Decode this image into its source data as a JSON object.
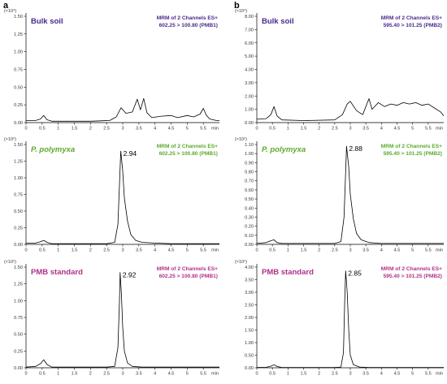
{
  "figure": {
    "panel_a": "a",
    "panel_b": "b"
  },
  "chart_data": [
    {
      "type": "line",
      "column": "a",
      "row": 0,
      "title": "Bulk soil",
      "title_color": "#4b2a8c",
      "info_line1": "MRM of 2 Channels ES+",
      "info_line2": "602.25 > 100.80 (PMB1)",
      "info_color": "#4b2a8c",
      "multiplier": "(×10⁴)",
      "ylim": [
        0,
        1.5
      ],
      "yticks": [
        "0.00",
        "0.25",
        "0.50",
        "0.75",
        "1.00",
        "1.25",
        "1.50"
      ],
      "xlim": [
        0,
        6
      ],
      "xticks": [
        "0",
        "0.5",
        "1",
        "1.5",
        "2",
        "2.5",
        "3",
        "3.5",
        "4",
        "4.5",
        "5",
        "5.5"
      ],
      "xunit": "min",
      "peak_label": "",
      "x": [
        0.0,
        0.3,
        0.45,
        0.55,
        0.65,
        0.8,
        1.2,
        2.0,
        2.6,
        2.8,
        2.95,
        3.1,
        3.3,
        3.45,
        3.55,
        3.65,
        3.75,
        3.9,
        4.2,
        4.5,
        4.7,
        5.0,
        5.2,
        5.4,
        5.5,
        5.6,
        5.7,
        5.9,
        6.0
      ],
      "y": [
        0.03,
        0.03,
        0.05,
        0.1,
        0.04,
        0.02,
        0.02,
        0.02,
        0.03,
        0.08,
        0.21,
        0.13,
        0.15,
        0.33,
        0.18,
        0.34,
        0.14,
        0.07,
        0.09,
        0.1,
        0.07,
        0.1,
        0.08,
        0.12,
        0.2,
        0.1,
        0.05,
        0.03,
        0.03
      ]
    },
    {
      "type": "line",
      "column": "b",
      "row": 0,
      "title": "Bulk soil",
      "title_color": "#4b2a8c",
      "info_line1": "MRM of 2 Channels ES+",
      "info_line2": "595.40 > 101.25 (PMB2)",
      "info_color": "#4b2a8c",
      "multiplier": "(×10⁴)",
      "ylim": [
        0,
        8.0
      ],
      "yticks": [
        "0.00",
        "1.00",
        "2.00",
        "3.00",
        "4.00",
        "5.00",
        "6.00",
        "7.00",
        "8.00"
      ],
      "xlim": [
        0,
        6
      ],
      "xticks": [
        "0",
        "0.5",
        "1",
        "1.5",
        "2",
        "2.5",
        "3",
        "3.5",
        "4",
        "4.5",
        "5",
        "5.5"
      ],
      "xunit": "min",
      "peak_label": "",
      "x": [
        0.0,
        0.3,
        0.45,
        0.55,
        0.65,
        0.8,
        1.5,
        2.5,
        2.75,
        2.9,
        3.0,
        3.2,
        3.4,
        3.6,
        3.7,
        3.9,
        4.1,
        4.3,
        4.5,
        4.7,
        4.9,
        5.1,
        5.3,
        5.5,
        5.7,
        5.9,
        6.0
      ],
      "y": [
        0.25,
        0.3,
        0.6,
        1.2,
        0.5,
        0.2,
        0.15,
        0.2,
        0.6,
        1.4,
        1.6,
        0.9,
        0.6,
        1.8,
        1.0,
        1.5,
        1.2,
        1.4,
        1.3,
        1.5,
        1.4,
        1.5,
        1.3,
        1.4,
        1.1,
        0.8,
        0.5
      ]
    },
    {
      "type": "line",
      "column": "a",
      "row": 1,
      "title": "P. polymyxa",
      "title_color": "#5aaa2a",
      "info_line1": "MRM of 2 Channels ES+",
      "info_line2": "602.25 > 100.80 (PMB1)",
      "info_color": "#5aaa2a",
      "multiplier": "(×10⁵)",
      "ylim": [
        0,
        1.5
      ],
      "yticks": [
        "0.00",
        "0.25",
        "0.50",
        "0.75",
        "1.00",
        "1.25",
        "1.50"
      ],
      "xlim": [
        0,
        6
      ],
      "xticks": [
        "0",
        "0.5",
        "1",
        "1.5",
        "2",
        "2.5",
        "3",
        "3.5",
        "4",
        "4.5",
        "5",
        "5.5"
      ],
      "xunit": "min",
      "peak_label": "2.94",
      "x": [
        0.0,
        0.3,
        0.45,
        0.55,
        0.65,
        0.8,
        1.5,
        2.5,
        2.75,
        2.85,
        2.9,
        2.94,
        3.0,
        3.05,
        3.15,
        3.25,
        3.4,
        3.6,
        4.0,
        4.5,
        5.0,
        5.5,
        6.0
      ],
      "y": [
        0.02,
        0.02,
        0.04,
        0.06,
        0.03,
        0.01,
        0.01,
        0.01,
        0.03,
        0.3,
        0.9,
        1.4,
        1.1,
        0.7,
        0.35,
        0.15,
        0.06,
        0.03,
        0.02,
        0.01,
        0.01,
        0.01,
        0.01
      ]
    },
    {
      "type": "line",
      "column": "b",
      "row": 1,
      "title": "P. polymyxa",
      "title_color": "#5aaa2a",
      "info_line1": "MRM of 2 Channels ES+",
      "info_line2": "595.40 > 101.25 (PMB2)",
      "info_color": "#5aaa2a",
      "multiplier": "(×10⁵)",
      "ylim": [
        0,
        1.1
      ],
      "yticks": [
        "0.00",
        "0.10",
        "0.20",
        "0.30",
        "0.40",
        "0.50",
        "0.60",
        "0.70",
        "0.80",
        "0.90",
        "1.00",
        "1.10"
      ],
      "xlim": [
        0,
        6
      ],
      "xticks": [
        "0",
        "0.5",
        "1",
        "1.5",
        "2",
        "2.5",
        "3",
        "3.5",
        "4",
        "4.5",
        "5",
        "5.5"
      ],
      "xunit": "min",
      "peak_label": "2.88",
      "x": [
        0.0,
        0.3,
        0.45,
        0.55,
        0.65,
        0.8,
        1.5,
        2.5,
        2.7,
        2.8,
        2.85,
        2.88,
        2.95,
        3.0,
        3.1,
        3.2,
        3.35,
        3.6,
        4.0,
        4.5,
        5.0,
        5.5,
        6.0
      ],
      "y": [
        0.01,
        0.02,
        0.04,
        0.05,
        0.02,
        0.01,
        0.01,
        0.01,
        0.03,
        0.3,
        0.8,
        1.08,
        0.85,
        0.55,
        0.28,
        0.12,
        0.05,
        0.02,
        0.01,
        0.01,
        0.01,
        0.01,
        0.01
      ]
    },
    {
      "type": "line",
      "column": "a",
      "row": 2,
      "title": "PMB standard",
      "title_color": "#b0308a",
      "info_line1": "MRM of 2 Channels ES+",
      "info_line2": "602.25 > 100.80 (PMB1)",
      "info_color": "#b0308a",
      "multiplier": "(×10⁵)",
      "ylim": [
        0,
        1.5
      ],
      "yticks": [
        "0.00",
        "0.25",
        "0.50",
        "0.75",
        "1.00",
        "1.25",
        "1.50"
      ],
      "xlim": [
        0,
        6
      ],
      "xticks": [
        "0",
        "0.5",
        "1",
        "1.5",
        "2",
        "2.5",
        "3",
        "3.5",
        "4",
        "4.5",
        "5",
        "5.5"
      ],
      "xunit": "min",
      "peak_label": "2.92",
      "x": [
        0.0,
        0.3,
        0.45,
        0.55,
        0.65,
        0.8,
        1.5,
        2.5,
        2.75,
        2.85,
        2.9,
        2.92,
        2.96,
        3.0,
        3.05,
        3.15,
        3.3,
        3.6,
        4.0,
        4.5,
        5.0,
        5.5,
        6.0
      ],
      "y": [
        0.01,
        0.02,
        0.06,
        0.12,
        0.05,
        0.01,
        0.01,
        0.01,
        0.02,
        0.3,
        1.0,
        1.42,
        1.1,
        0.6,
        0.25,
        0.07,
        0.02,
        0.01,
        0.01,
        0.01,
        0.01,
        0.01,
        0.01
      ]
    },
    {
      "type": "line",
      "column": "b",
      "row": 2,
      "title": "PMB standard",
      "title_color": "#b0308a",
      "info_line1": "MRM of 2 Channels ES+",
      "info_line2": "595.40 > 101.25 (PMB2)",
      "info_color": "#b0308a",
      "multiplier": "(×10⁵)",
      "ylim": [
        0,
        4.0
      ],
      "yticks": [
        "0.00",
        "0.50",
        "1.00",
        "1.50",
        "2.00",
        "2.50",
        "3.00",
        "3.50",
        "4.00"
      ],
      "xlim": [
        0,
        6
      ],
      "xticks": [
        "0",
        "0.5",
        "1",
        "1.5",
        "2",
        "2.5",
        "3",
        "3.5",
        "4",
        "4.5",
        "5",
        "5.5"
      ],
      "xunit": "min",
      "peak_label": "2.85",
      "x": [
        0.0,
        0.3,
        0.45,
        0.55,
        0.65,
        0.8,
        1.5,
        2.5,
        2.7,
        2.78,
        2.82,
        2.85,
        2.9,
        2.95,
        3.0,
        3.1,
        3.3,
        3.6,
        4.0,
        4.5,
        5.0,
        5.5,
        6.0
      ],
      "y": [
        0.01,
        0.02,
        0.06,
        0.12,
        0.05,
        0.01,
        0.01,
        0.01,
        0.03,
        0.6,
        2.6,
        3.85,
        3.0,
        1.5,
        0.5,
        0.12,
        0.03,
        0.01,
        0.01,
        0.01,
        0.01,
        0.01,
        0.01
      ]
    }
  ]
}
